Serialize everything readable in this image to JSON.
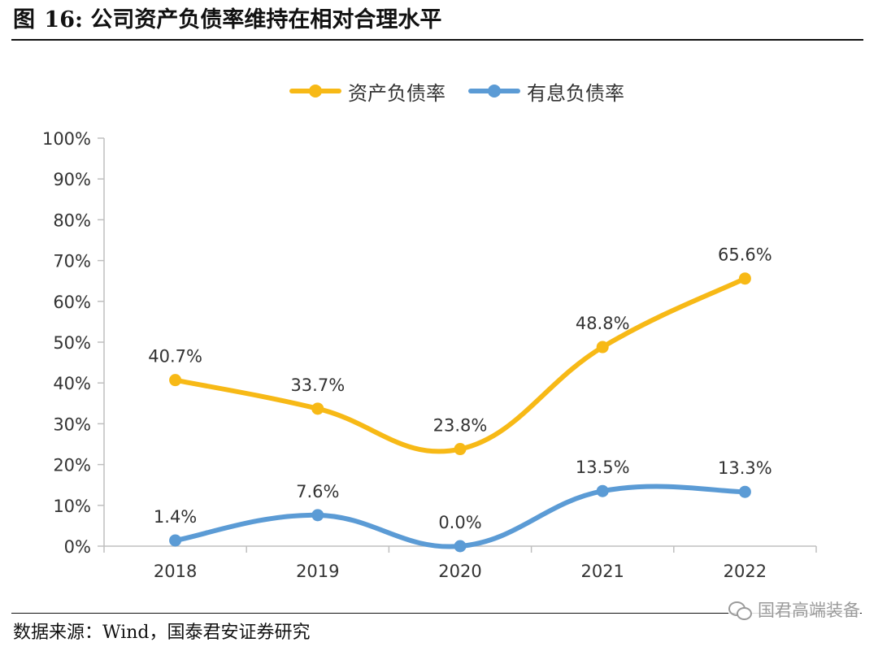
{
  "figure": {
    "label": "图",
    "number": "16:",
    "title": "公司资产负债率维持在相对合理水平"
  },
  "source": "数据来源：Wind，国泰君安证券研究",
  "watermark": "国君高端装备",
  "chart_data": {
    "type": "line",
    "smooth": true,
    "categories": [
      "2018",
      "2019",
      "2020",
      "2021",
      "2022"
    ],
    "series": [
      {
        "name": "资产负债率",
        "color": "#F7B916",
        "values": [
          40.7,
          33.7,
          23.8,
          48.8,
          65.6
        ],
        "labels": [
          "40.7%",
          "33.7%",
          "23.8%",
          "48.8%",
          "65.6%"
        ]
      },
      {
        "name": "有息负债率",
        "color": "#5B9BD5",
        "values": [
          1.4,
          7.6,
          0.0,
          13.5,
          13.3
        ],
        "labels": [
          "1.4%",
          "7.6%",
          "0.0%",
          "13.5%",
          "13.3%"
        ]
      }
    ],
    "ylim": [
      0,
      100
    ],
    "yticks": [
      "0%",
      "10%",
      "20%",
      "30%",
      "40%",
      "50%",
      "60%",
      "70%",
      "80%",
      "90%",
      "100%"
    ],
    "xlabel": "",
    "ylabel": "",
    "grid": false,
    "legend": "top-center",
    "axis_color": "#BFBFBF"
  }
}
